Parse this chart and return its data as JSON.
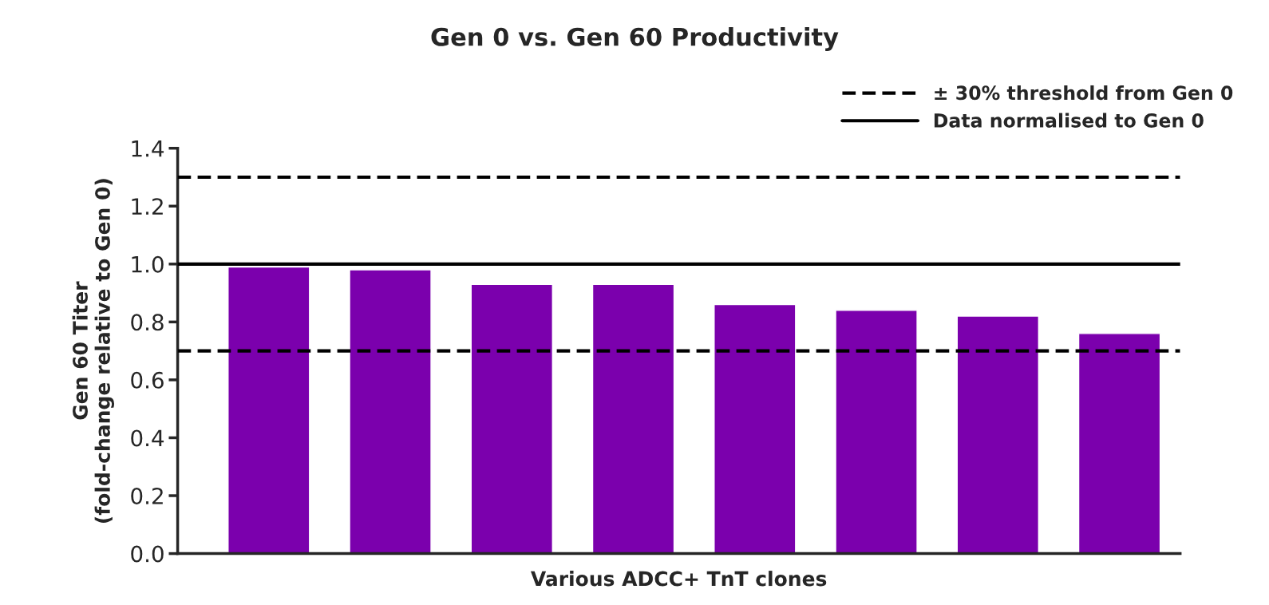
{
  "chart_data": {
    "type": "bar",
    "title": "Gen 0 vs. Gen 60 Productivity",
    "xlabel": "Various ADCC+ TnT clones",
    "ylabel": "Gen 60 Titer\n(fold-change relative to Gen 0)",
    "categories": [
      null,
      null,
      null,
      null,
      null,
      null,
      null,
      null
    ],
    "values": [
      0.99,
      0.98,
      0.93,
      0.93,
      0.86,
      0.84,
      0.82,
      0.76
    ],
    "color": "#7b00ad",
    "ylim": [
      0,
      1.4
    ],
    "yticks": [
      {
        "value": 0,
        "label": "0.0"
      },
      0.2,
      0.4,
      0.6,
      0.8,
      {
        "value": 1,
        "label": "1.0"
      },
      1.2,
      1.4
    ],
    "ref_lines": [
      {
        "axis": "y",
        "value": 1.3,
        "label": "± 30% threshold from Gen 0",
        "line_style": "dashed",
        "color": "#000000"
      },
      {
        "axis": "y",
        "value": 0.7,
        "line_style": "dashed",
        "color": "#000000"
      },
      {
        "axis": "y",
        "value": 1.0,
        "label": "Data normalised to Gen 0",
        "line_style": "solid",
        "color": "#000000"
      }
    ],
    "legend": "top right",
    "grid": false
  }
}
